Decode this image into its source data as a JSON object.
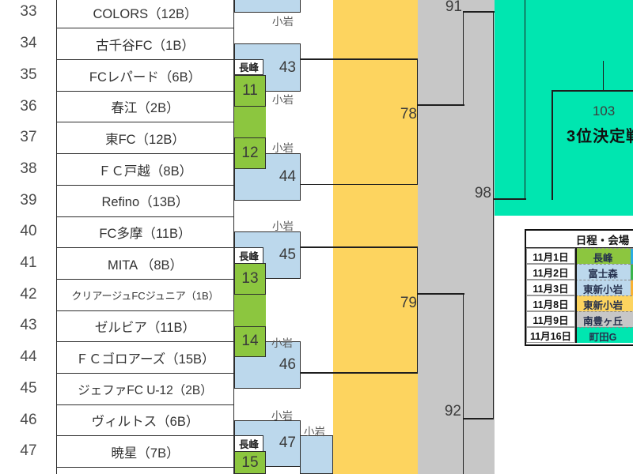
{
  "bracket": {
    "teams": [
      {
        "no": "33",
        "name": "COLORS（12B）"
      },
      {
        "no": "34",
        "name": "古千谷FC（1B）"
      },
      {
        "no": "35",
        "name": "FCレパード（6B）"
      },
      {
        "no": "36",
        "name": "春江（2B）"
      },
      {
        "no": "37",
        "name": "東FC（12B）"
      },
      {
        "no": "38",
        "name": "ＦＣ戸越（8B）"
      },
      {
        "no": "39",
        "name": "Refino（13B）"
      },
      {
        "no": "40",
        "name": "FC多摩（11B）"
      },
      {
        "no": "41",
        "name": "MITA （8B）"
      },
      {
        "no": "42",
        "name": "クリアージュFCジュニア（1B）"
      },
      {
        "no": "43",
        "name": "ゼルビア（11B）"
      },
      {
        "no": "44",
        "name": "ＦＣゴロアーズ（15B）"
      },
      {
        "no": "45",
        "name": "ジェファFC U-12（2B）"
      },
      {
        "no": "46",
        "name": "ヴィルトス（6B）"
      },
      {
        "no": "47",
        "name": "暁星（7B）"
      }
    ],
    "green_matches": [
      "11",
      "12",
      "13",
      "14",
      "15"
    ],
    "blue_matches": [
      "43",
      "44",
      "45",
      "46",
      "47"
    ],
    "round_labels": [
      "78",
      "79",
      "91",
      "92",
      "98",
      "103"
    ],
    "venue_nagamine": "長峰",
    "venue_koiwa": "小岩",
    "third_place_label": "3位決定戦"
  },
  "schedule_table": {
    "header": "日程・会場",
    "rows": [
      {
        "date": "11月1日",
        "venue": "長峰"
      },
      {
        "date": "11月2日",
        "venue": "富士森"
      },
      {
        "date": "11月3日",
        "venue": "東新小岩"
      },
      {
        "date": "11月8日",
        "venue": "東新小岩"
      },
      {
        "date": "11月9日",
        "venue": "南豊ヶ丘"
      },
      {
        "date": "11月16日",
        "venue": "町田G"
      }
    ]
  },
  "colors": {
    "blue_box": "#bcd8ec",
    "green_box": "#8cc63f",
    "yellow_band": "#fdd45f",
    "gray_band": "#c7c7c7",
    "teal": "#00e6b0",
    "table_light_blue": "#bcd8ec",
    "table_yellow": "#fdd45f",
    "table_gray": "#c7c7c7",
    "table_teal": "#00e6b0",
    "table_green": "#8cc63f",
    "sliver_blue": "#2aabe2",
    "sliver_green": "#3ab54a",
    "sliver_orange": "#f9b233"
  }
}
